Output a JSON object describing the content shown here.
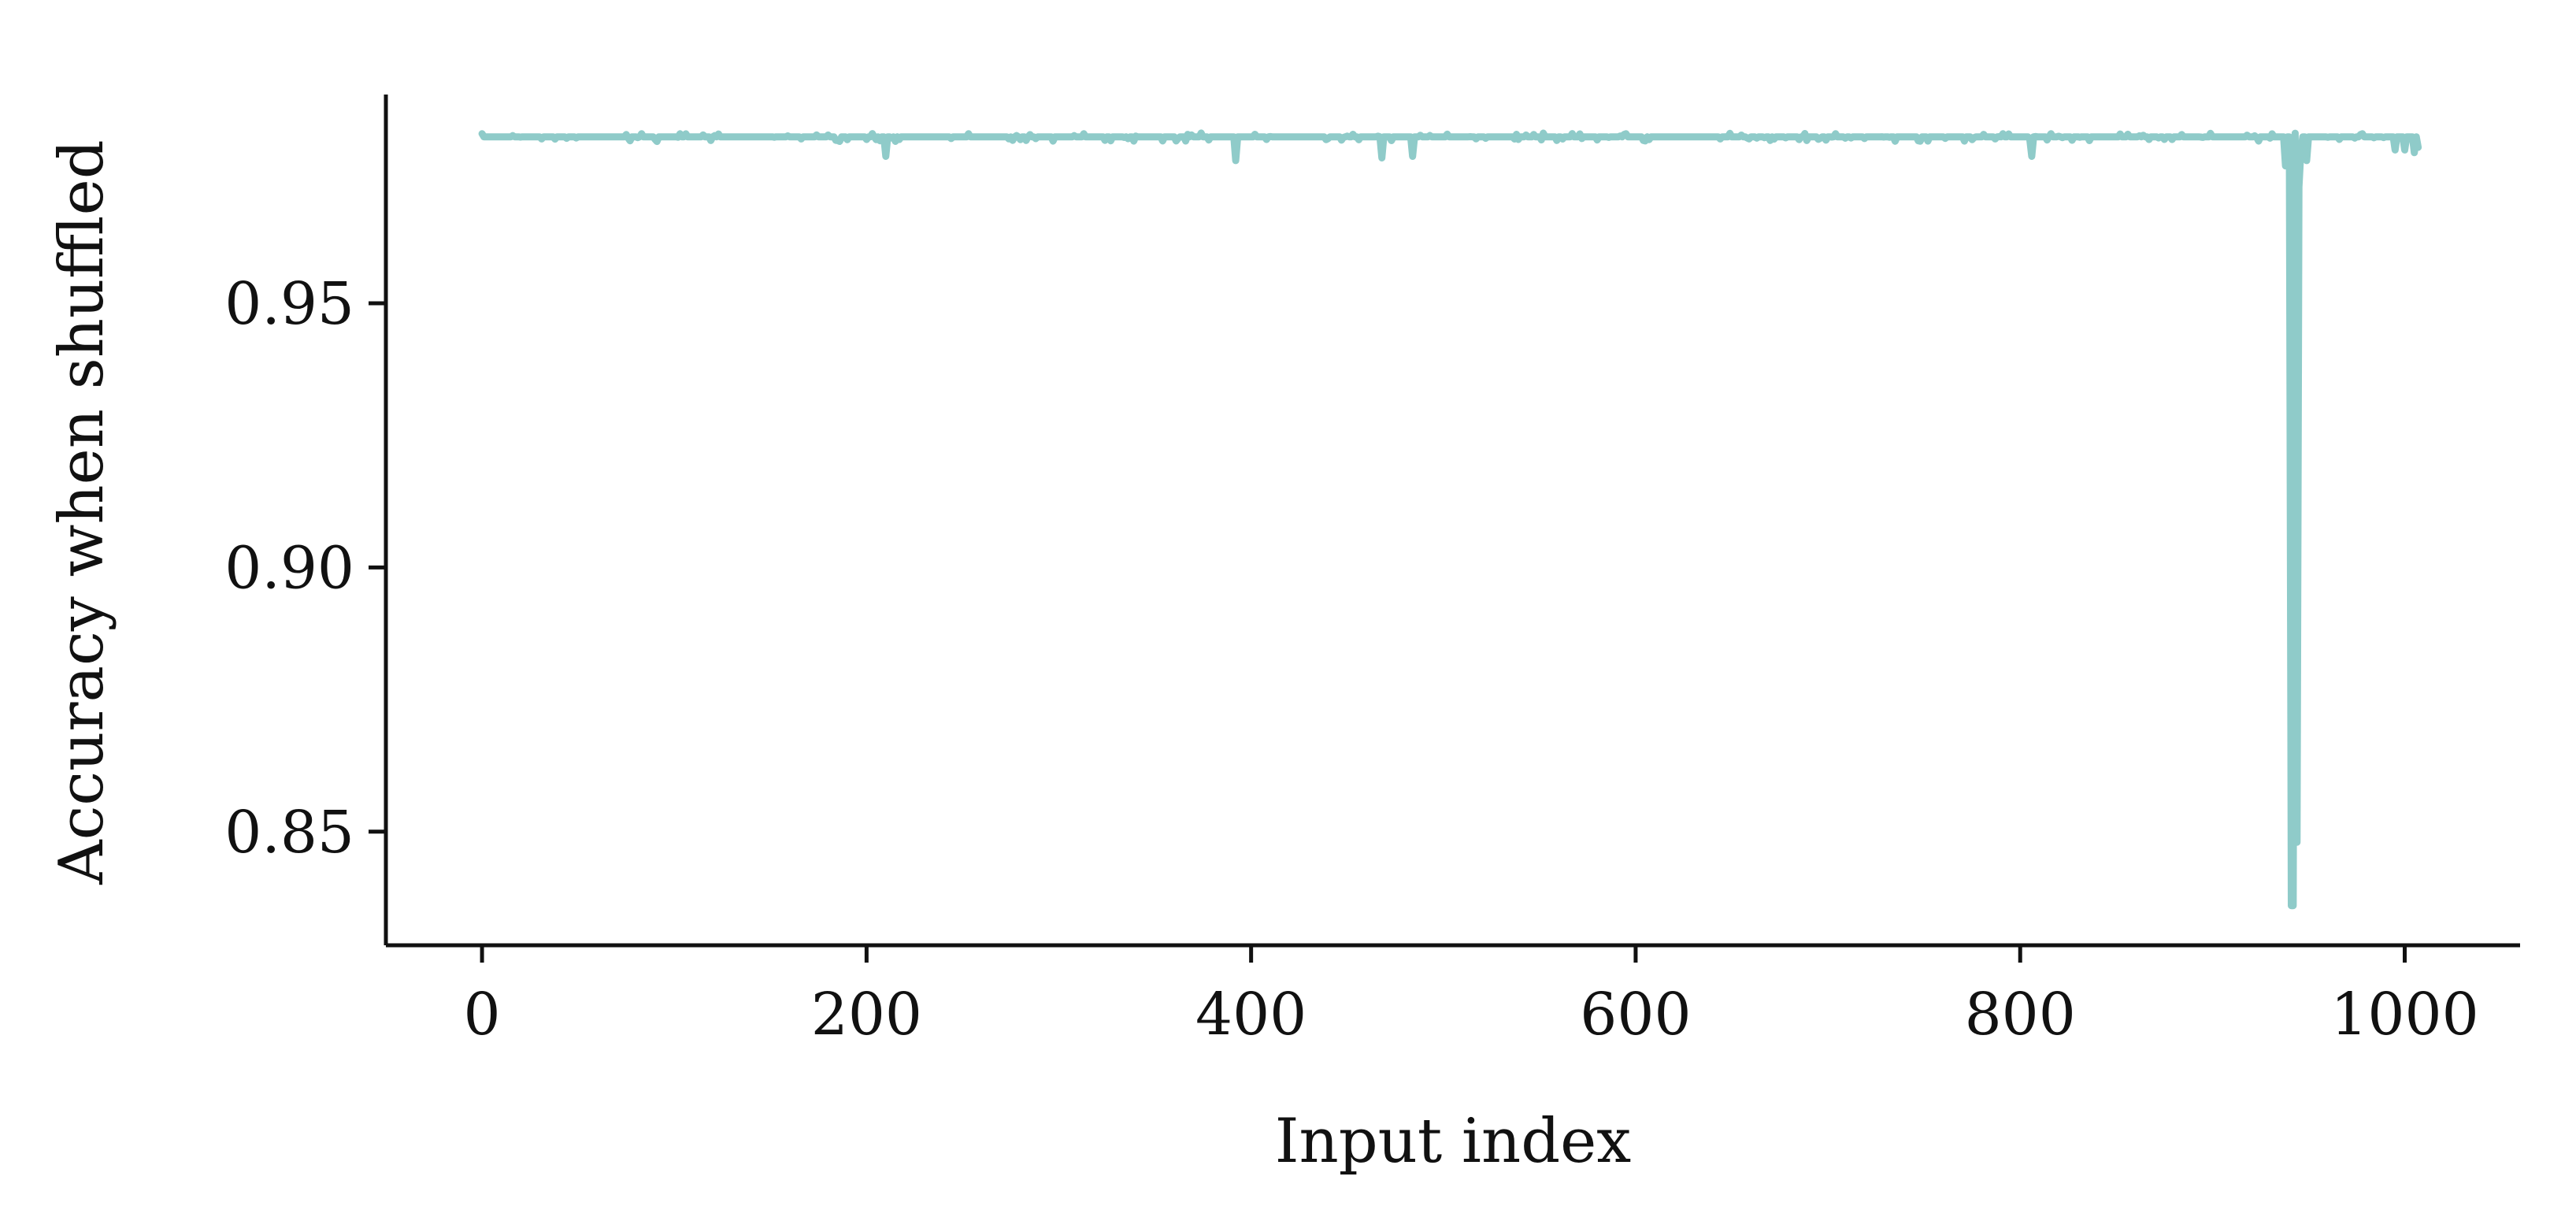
{
  "chart_data": {
    "type": "line",
    "title": "",
    "xlabel": "Input index",
    "ylabel": "Accuracy when shuffled",
    "xlim": [
      -50,
      1060
    ],
    "ylim": [
      0.8285,
      0.9895
    ],
    "xticks": [
      0,
      200,
      400,
      600,
      800,
      1000
    ],
    "xtick_labels": [
      "0",
      "200",
      "400",
      "600",
      "800",
      "1000"
    ],
    "yticks": [
      0.85,
      0.9,
      0.95
    ],
    "ytick_labels": [
      "0.85",
      "0.90",
      "0.95"
    ],
    "grid": false,
    "series": [
      {
        "name": "accuracy",
        "color": "#8fcbc9",
        "baseline": 0.9815,
        "x_range": [
          0,
          1007
        ],
        "dips": [
          {
            "x": 210,
            "y": 0.9778
          },
          {
            "x": 392,
            "y": 0.977
          },
          {
            "x": 468,
            "y": 0.9775
          },
          {
            "x": 484,
            "y": 0.9778
          },
          {
            "x": 806,
            "y": 0.9778
          },
          {
            "x": 938,
            "y": 0.976
          },
          {
            "x": 941,
            "y": 0.836
          },
          {
            "x": 942,
            "y": 0.836
          },
          {
            "x": 944,
            "y": 0.848
          },
          {
            "x": 945,
            "y": 0.972
          },
          {
            "x": 946,
            "y": 0.979
          },
          {
            "x": 949,
            "y": 0.977
          },
          {
            "x": 995,
            "y": 0.979
          },
          {
            "x": 1000,
            "y": 0.979
          },
          {
            "x": 1005,
            "y": 0.9785
          },
          {
            "x": 1007,
            "y": 0.9795
          }
        ],
        "noise_amplitude": 0.0008
      }
    ]
  }
}
